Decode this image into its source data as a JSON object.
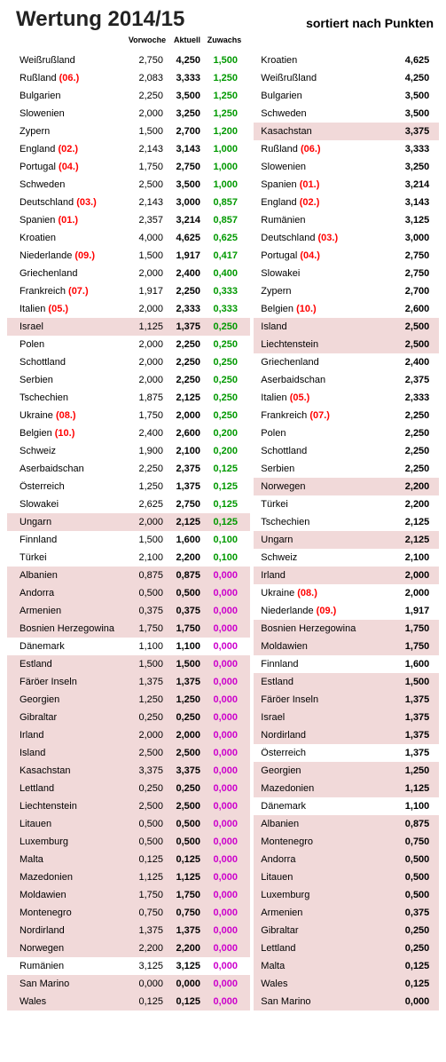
{
  "title": "Wertung 2014/15",
  "subtitle": "sortiert nach Punkten",
  "headers": {
    "vorwoche": "Vorwoche",
    "aktuell": "Aktuell",
    "zuwachs": "Zuwachs"
  },
  "colors": {
    "green": "#009900",
    "magenta": "#cc00cc",
    "red": "#ff0000",
    "highlight": "#f1d9d9"
  },
  "left": [
    {
      "country": "Weißrußland",
      "vor": "2,750",
      "akt": "4,250",
      "zuw": "1,500",
      "zcolor": "green"
    },
    {
      "country": "Rußland",
      "rank": "(06.)",
      "vor": "2,083",
      "akt": "3,333",
      "zuw": "1,250",
      "zcolor": "green"
    },
    {
      "country": "Bulgarien",
      "vor": "2,250",
      "akt": "3,500",
      "zuw": "1,250",
      "zcolor": "green"
    },
    {
      "country": "Slowenien",
      "vor": "2,000",
      "akt": "3,250",
      "zuw": "1,250",
      "zcolor": "green"
    },
    {
      "country": "Zypern",
      "vor": "1,500",
      "akt": "2,700",
      "zuw": "1,200",
      "zcolor": "green"
    },
    {
      "country": "England",
      "rank": "(02.)",
      "vor": "2,143",
      "akt": "3,143",
      "zuw": "1,000",
      "zcolor": "green"
    },
    {
      "country": "Portugal",
      "rank": "(04.)",
      "vor": "1,750",
      "akt": "2,750",
      "zuw": "1,000",
      "zcolor": "green"
    },
    {
      "country": "Schweden",
      "vor": "2,500",
      "akt": "3,500",
      "zuw": "1,000",
      "zcolor": "green"
    },
    {
      "country": "Deutschland",
      "rank": "(03.)",
      "vor": "2,143",
      "akt": "3,000",
      "zuw": "0,857",
      "zcolor": "green"
    },
    {
      "country": "Spanien",
      "rank": "(01.)",
      "vor": "2,357",
      "akt": "3,214",
      "zuw": "0,857",
      "zcolor": "green"
    },
    {
      "country": "Kroatien",
      "vor": "4,000",
      "akt": "4,625",
      "zuw": "0,625",
      "zcolor": "green"
    },
    {
      "country": "Niederlande",
      "rank": "(09.)",
      "vor": "1,500",
      "akt": "1,917",
      "zuw": "0,417",
      "zcolor": "green"
    },
    {
      "country": "Griechenland",
      "vor": "2,000",
      "akt": "2,400",
      "zuw": "0,400",
      "zcolor": "green"
    },
    {
      "country": "Frankreich",
      "rank": "(07.)",
      "vor": "1,917",
      "akt": "2,250",
      "zuw": "0,333",
      "zcolor": "green"
    },
    {
      "country": "Italien",
      "rank": "(05.)",
      "vor": "2,000",
      "akt": "2,333",
      "zuw": "0,333",
      "zcolor": "green"
    },
    {
      "country": "Israel",
      "vor": "1,125",
      "akt": "1,375",
      "zuw": "0,250",
      "zcolor": "green",
      "hl": true
    },
    {
      "country": "Polen",
      "vor": "2,000",
      "akt": "2,250",
      "zuw": "0,250",
      "zcolor": "green"
    },
    {
      "country": "Schottland",
      "vor": "2,000",
      "akt": "2,250",
      "zuw": "0,250",
      "zcolor": "green"
    },
    {
      "country": "Serbien",
      "vor": "2,000",
      "akt": "2,250",
      "zuw": "0,250",
      "zcolor": "green"
    },
    {
      "country": "Tschechien",
      "vor": "1,875",
      "akt": "2,125",
      "zuw": "0,250",
      "zcolor": "green"
    },
    {
      "country": "Ukraine",
      "rank": "(08.)",
      "vor": "1,750",
      "akt": "2,000",
      "zuw": "0,250",
      "zcolor": "green"
    },
    {
      "country": "Belgien",
      "rank": "(10.)",
      "vor": "2,400",
      "akt": "2,600",
      "zuw": "0,200",
      "zcolor": "green"
    },
    {
      "country": "Schweiz",
      "vor": "1,900",
      "akt": "2,100",
      "zuw": "0,200",
      "zcolor": "green"
    },
    {
      "country": "Aserbaidschan",
      "vor": "2,250",
      "akt": "2,375",
      "zuw": "0,125",
      "zcolor": "green"
    },
    {
      "country": "Österreich",
      "vor": "1,250",
      "akt": "1,375",
      "zuw": "0,125",
      "zcolor": "green"
    },
    {
      "country": "Slowakei",
      "vor": "2,625",
      "akt": "2,750",
      "zuw": "0,125",
      "zcolor": "green"
    },
    {
      "country": "Ungarn",
      "vor": "2,000",
      "akt": "2,125",
      "zuw": "0,125",
      "zcolor": "green",
      "hl": true
    },
    {
      "country": "Finnland",
      "vor": "1,500",
      "akt": "1,600",
      "zuw": "0,100",
      "zcolor": "green"
    },
    {
      "country": "Türkei",
      "vor": "2,100",
      "akt": "2,200",
      "zuw": "0,100",
      "zcolor": "green"
    },
    {
      "country": "Albanien",
      "vor": "0,875",
      "akt": "0,875",
      "zuw": "0,000",
      "zcolor": "magenta",
      "hl": true
    },
    {
      "country": "Andorra",
      "vor": "0,500",
      "akt": "0,500",
      "zuw": "0,000",
      "zcolor": "magenta",
      "hl": true
    },
    {
      "country": "Armenien",
      "vor": "0,375",
      "akt": "0,375",
      "zuw": "0,000",
      "zcolor": "magenta",
      "hl": true
    },
    {
      "country": "Bosnien Herzegowina",
      "vor": "1,750",
      "akt": "1,750",
      "zuw": "0,000",
      "zcolor": "magenta",
      "hl": true
    },
    {
      "country": "Dänemark",
      "vor": "1,100",
      "akt": "1,100",
      "zuw": "0,000",
      "zcolor": "magenta"
    },
    {
      "country": "Estland",
      "vor": "1,500",
      "akt": "1,500",
      "zuw": "0,000",
      "zcolor": "magenta",
      "hl": true
    },
    {
      "country": "Färöer Inseln",
      "vor": "1,375",
      "akt": "1,375",
      "zuw": "0,000",
      "zcolor": "magenta",
      "hl": true
    },
    {
      "country": "Georgien",
      "vor": "1,250",
      "akt": "1,250",
      "zuw": "0,000",
      "zcolor": "magenta",
      "hl": true
    },
    {
      "country": "Gibraltar",
      "vor": "0,250",
      "akt": "0,250",
      "zuw": "0,000",
      "zcolor": "magenta",
      "hl": true
    },
    {
      "country": "Irland",
      "vor": "2,000",
      "akt": "2,000",
      "zuw": "0,000",
      "zcolor": "magenta",
      "hl": true
    },
    {
      "country": "Island",
      "vor": "2,500",
      "akt": "2,500",
      "zuw": "0,000",
      "zcolor": "magenta",
      "hl": true
    },
    {
      "country": "Kasachstan",
      "vor": "3,375",
      "akt": "3,375",
      "zuw": "0,000",
      "zcolor": "magenta",
      "hl": true
    },
    {
      "country": "Lettland",
      "vor": "0,250",
      "akt": "0,250",
      "zuw": "0,000",
      "zcolor": "magenta",
      "hl": true
    },
    {
      "country": "Liechtenstein",
      "vor": "2,500",
      "akt": "2,500",
      "zuw": "0,000",
      "zcolor": "magenta",
      "hl": true
    },
    {
      "country": "Litauen",
      "vor": "0,500",
      "akt": "0,500",
      "zuw": "0,000",
      "zcolor": "magenta",
      "hl": true
    },
    {
      "country": "Luxemburg",
      "vor": "0,500",
      "akt": "0,500",
      "zuw": "0,000",
      "zcolor": "magenta",
      "hl": true
    },
    {
      "country": "Malta",
      "vor": "0,125",
      "akt": "0,125",
      "zuw": "0,000",
      "zcolor": "magenta",
      "hl": true
    },
    {
      "country": "Mazedonien",
      "vor": "1,125",
      "akt": "1,125",
      "zuw": "0,000",
      "zcolor": "magenta",
      "hl": true
    },
    {
      "country": "Moldawien",
      "vor": "1,750",
      "akt": "1,750",
      "zuw": "0,000",
      "zcolor": "magenta",
      "hl": true
    },
    {
      "country": "Montenegro",
      "vor": "0,750",
      "akt": "0,750",
      "zuw": "0,000",
      "zcolor": "magenta",
      "hl": true
    },
    {
      "country": "Nordirland",
      "vor": "1,375",
      "akt": "1,375",
      "zuw": "0,000",
      "zcolor": "magenta",
      "hl": true
    },
    {
      "country": "Norwegen",
      "vor": "2,200",
      "akt": "2,200",
      "zuw": "0,000",
      "zcolor": "magenta",
      "hl": true
    },
    {
      "country": "Rumänien",
      "vor": "3,125",
      "akt": "3,125",
      "zuw": "0,000",
      "zcolor": "magenta"
    },
    {
      "country": "San Marino",
      "vor": "0,000",
      "akt": "0,000",
      "zuw": "0,000",
      "zcolor": "magenta",
      "hl": true
    },
    {
      "country": "Wales",
      "vor": "0,125",
      "akt": "0,125",
      "zuw": "0,000",
      "zcolor": "magenta",
      "hl": true
    }
  ],
  "right": [
    {
      "country": "Kroatien",
      "akt": "4,625"
    },
    {
      "country": "Weißrußland",
      "akt": "4,250"
    },
    {
      "country": "Bulgarien",
      "akt": "3,500"
    },
    {
      "country": "Schweden",
      "akt": "3,500"
    },
    {
      "country": "Kasachstan",
      "akt": "3,375",
      "hl": true
    },
    {
      "country": "Rußland",
      "rank": "(06.)",
      "akt": "3,333"
    },
    {
      "country": "Slowenien",
      "akt": "3,250"
    },
    {
      "country": "Spanien",
      "rank": "(01.)",
      "akt": "3,214"
    },
    {
      "country": "England",
      "rank": "(02.)",
      "akt": "3,143"
    },
    {
      "country": "Rumänien",
      "akt": "3,125"
    },
    {
      "country": "Deutschland",
      "rank": "(03.)",
      "akt": "3,000"
    },
    {
      "country": "Portugal",
      "rank": "(04.)",
      "akt": "2,750"
    },
    {
      "country": "Slowakei",
      "akt": "2,750"
    },
    {
      "country": "Zypern",
      "akt": "2,700"
    },
    {
      "country": "Belgien",
      "rank": "(10.)",
      "akt": "2,600"
    },
    {
      "country": "Island",
      "akt": "2,500",
      "hl": true
    },
    {
      "country": "Liechtenstein",
      "akt": "2,500",
      "hl": true
    },
    {
      "country": "Griechenland",
      "akt": "2,400"
    },
    {
      "country": "Aserbaidschan",
      "akt": "2,375"
    },
    {
      "country": "Italien",
      "rank": "(05.)",
      "akt": "2,333"
    },
    {
      "country": "Frankreich",
      "rank": "(07.)",
      "akt": "2,250"
    },
    {
      "country": "Polen",
      "akt": "2,250"
    },
    {
      "country": "Schottland",
      "akt": "2,250"
    },
    {
      "country": "Serbien",
      "akt": "2,250"
    },
    {
      "country": "Norwegen",
      "akt": "2,200",
      "hl": true
    },
    {
      "country": "Türkei",
      "akt": "2,200"
    },
    {
      "country": "Tschechien",
      "akt": "2,125"
    },
    {
      "country": "Ungarn",
      "akt": "2,125",
      "hl": true
    },
    {
      "country": "Schweiz",
      "akt": "2,100"
    },
    {
      "country": "Irland",
      "akt": "2,000",
      "hl": true
    },
    {
      "country": "Ukraine",
      "rank": "(08.)",
      "akt": "2,000"
    },
    {
      "country": "Niederlande",
      "rank": "(09.)",
      "akt": "1,917"
    },
    {
      "country": "Bosnien Herzegowina",
      "akt": "1,750",
      "hl": true
    },
    {
      "country": "Moldawien",
      "akt": "1,750",
      "hl": true
    },
    {
      "country": "Finnland",
      "akt": "1,600"
    },
    {
      "country": "Estland",
      "akt": "1,500",
      "hl": true
    },
    {
      "country": "Färöer Inseln",
      "akt": "1,375",
      "hl": true
    },
    {
      "country": "Israel",
      "akt": "1,375",
      "hl": true
    },
    {
      "country": "Nordirland",
      "akt": "1,375",
      "hl": true
    },
    {
      "country": "Österreich",
      "akt": "1,375"
    },
    {
      "country": "Georgien",
      "akt": "1,250",
      "hl": true
    },
    {
      "country": "Mazedonien",
      "akt": "1,125",
      "hl": true
    },
    {
      "country": "Dänemark",
      "akt": "1,100"
    },
    {
      "country": "Albanien",
      "akt": "0,875",
      "hl": true
    },
    {
      "country": "Montenegro",
      "akt": "0,750",
      "hl": true
    },
    {
      "country": "Andorra",
      "akt": "0,500",
      "hl": true
    },
    {
      "country": "Litauen",
      "akt": "0,500",
      "hl": true
    },
    {
      "country": "Luxemburg",
      "akt": "0,500",
      "hl": true
    },
    {
      "country": "Armenien",
      "akt": "0,375",
      "hl": true
    },
    {
      "country": "Gibraltar",
      "akt": "0,250",
      "hl": true
    },
    {
      "country": "Lettland",
      "akt": "0,250",
      "hl": true
    },
    {
      "country": "Malta",
      "akt": "0,125",
      "hl": true
    },
    {
      "country": "Wales",
      "akt": "0,125",
      "hl": true
    },
    {
      "country": "San Marino",
      "akt": "0,000",
      "hl": true
    }
  ]
}
